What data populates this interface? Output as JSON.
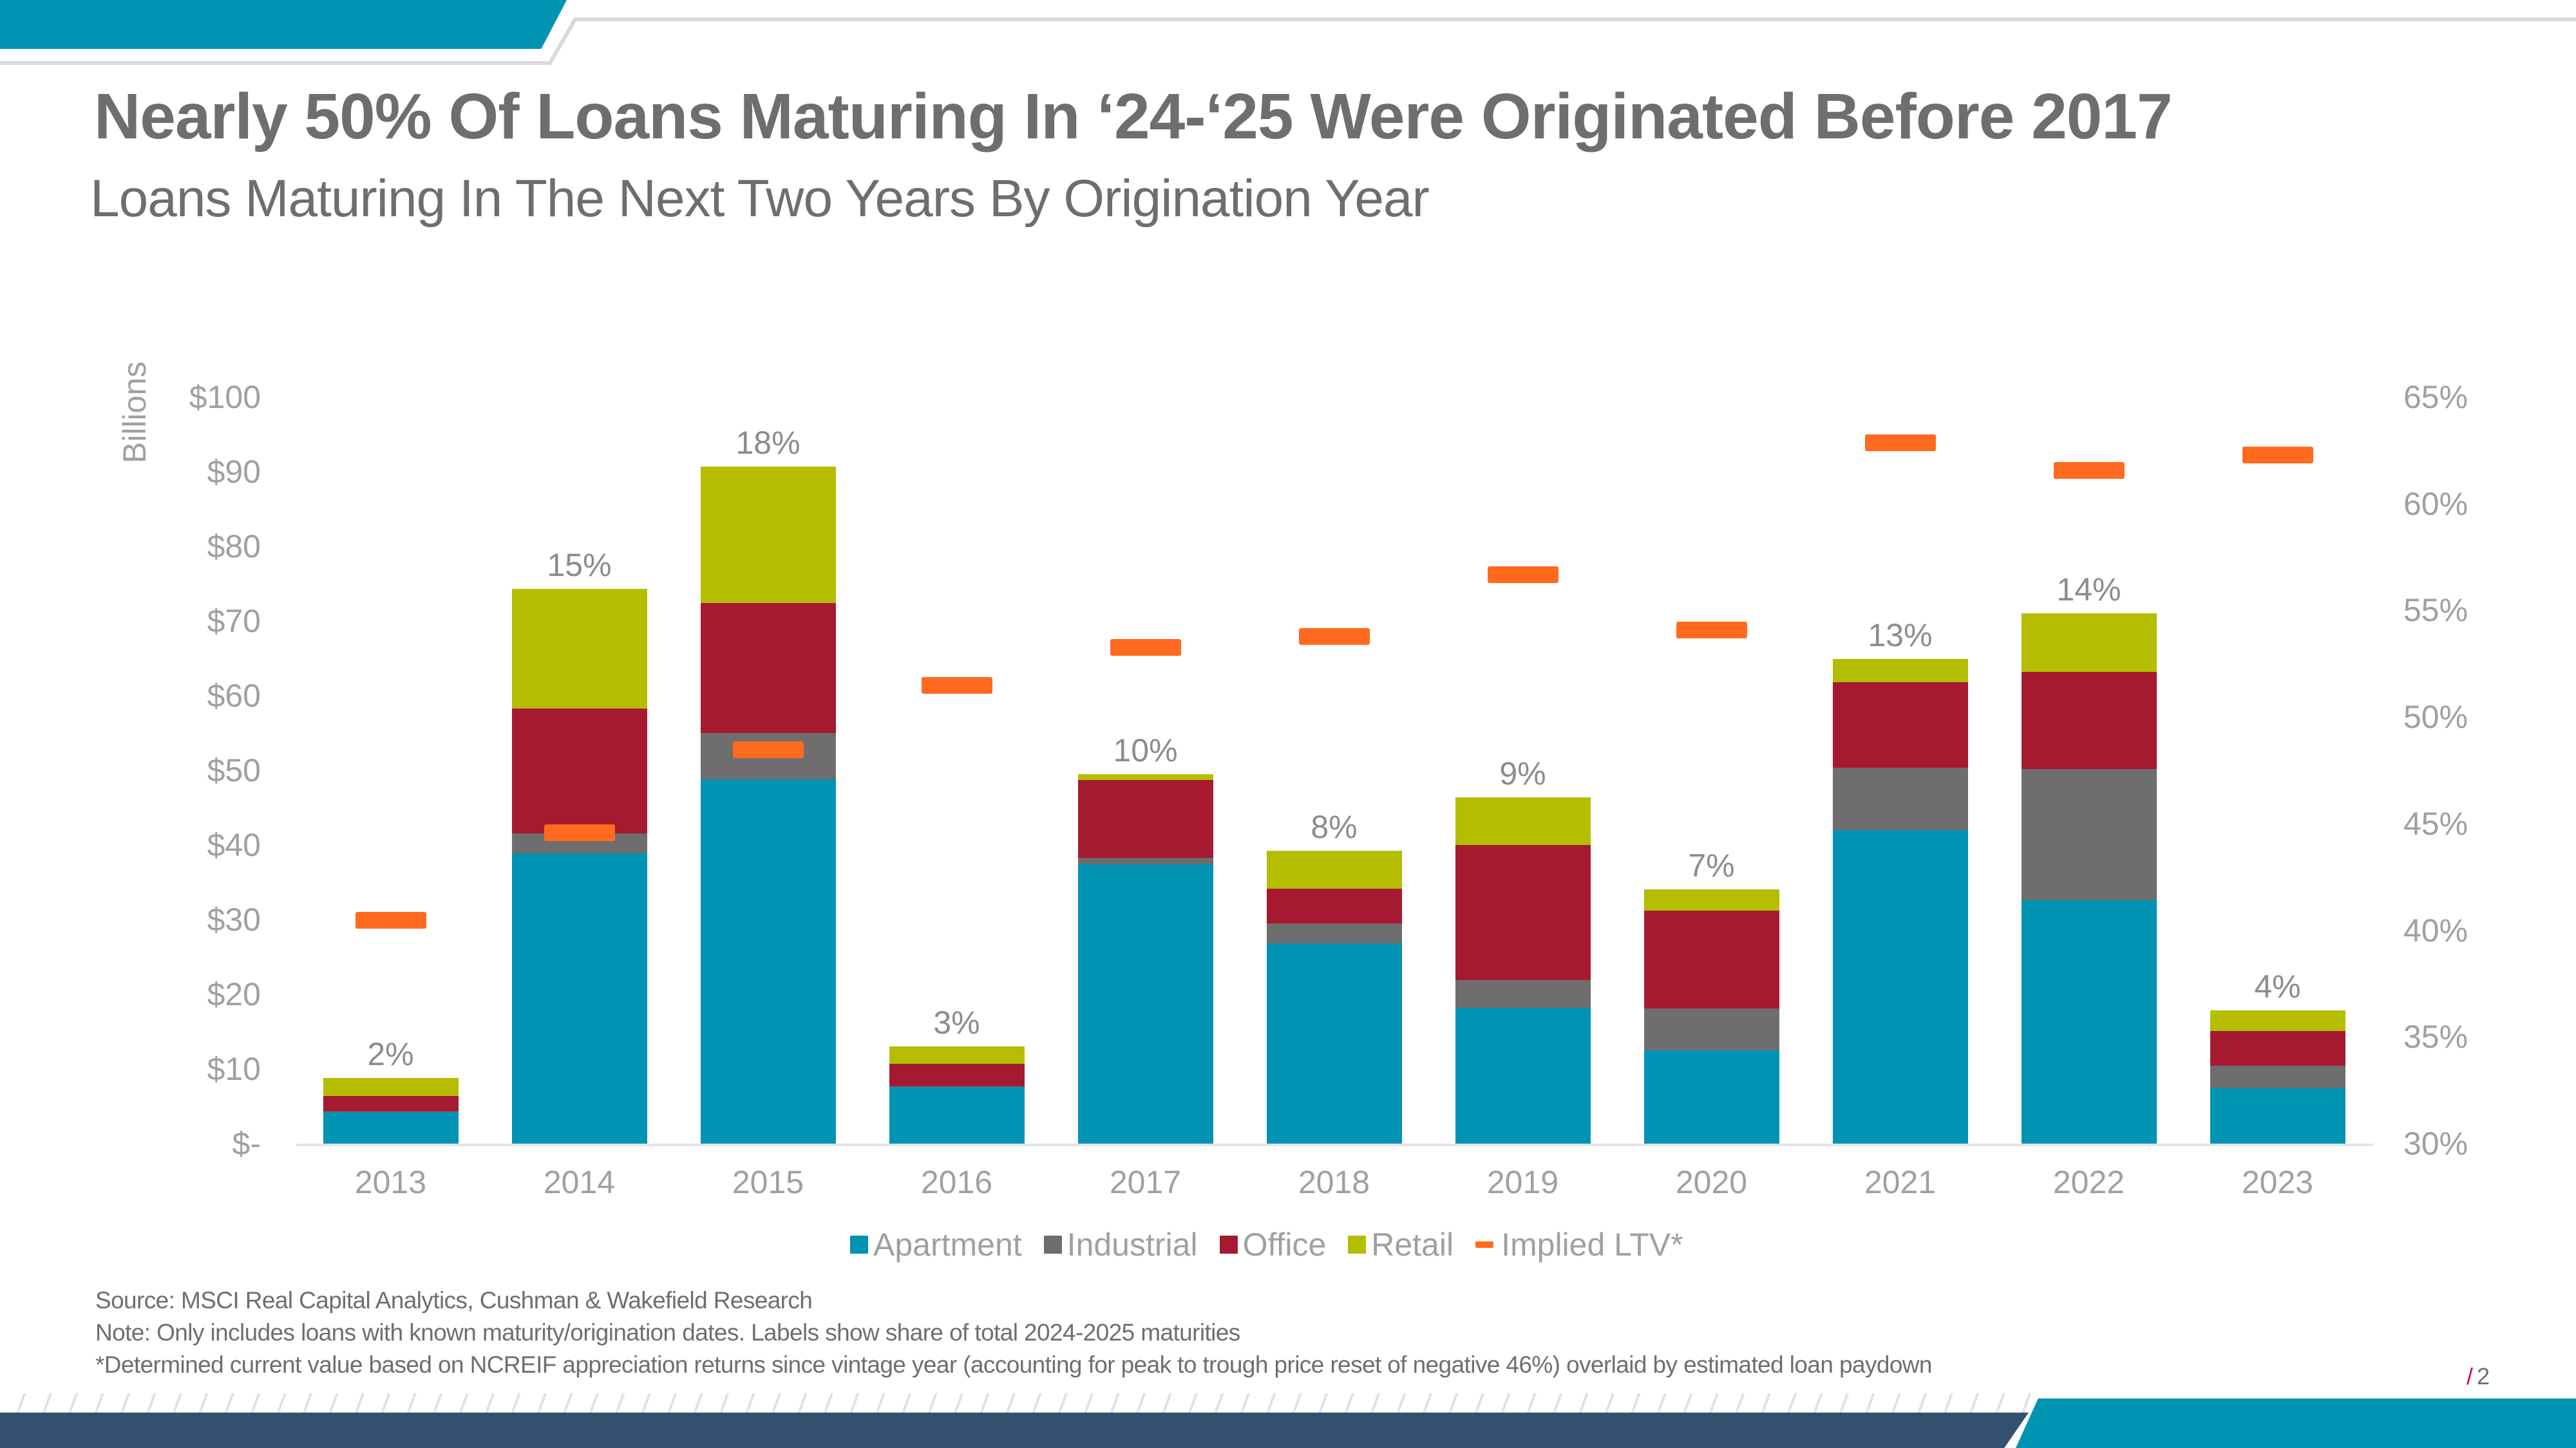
{
  "slide": {
    "title": "Nearly 50% Of Loans Maturing In ‘24-‘25 Were Originated Before 2017",
    "subtitle": "Loans Maturing In The Next Two Years By Origination Year",
    "page_number": "2",
    "page_slash": "/"
  },
  "colors": {
    "apartment": "#0093B4",
    "industrial": "#6D6E6D",
    "office": "#A51A30",
    "retail": "#B5BD00",
    "implied_ltv": "#FF6A1F",
    "header_teal": "#0093B4",
    "footer_navy": "#34506F"
  },
  "axes": {
    "y_left_label": "Billions",
    "y_left_ticks": [
      "$-",
      "$10",
      "$20",
      "$30",
      "$40",
      "$50",
      "$60",
      "$70",
      "$80",
      "$90",
      "$100"
    ],
    "y_right_ticks": [
      "30%",
      "35%",
      "40%",
      "45%",
      "50%",
      "55%",
      "60%",
      "65%"
    ]
  },
  "legend": {
    "apartment": "Apartment",
    "industrial": "Industrial",
    "office": "Office",
    "retail": "Retail",
    "implied_ltv": "Implied LTV*"
  },
  "notes": {
    "source": "Source: MSCI Real Capital Analytics, Cushman & Wakefield Research",
    "note": "Note: Only includes loans with known maturity/origination dates. Labels show share of total 2024-2025 maturities",
    "footnote": "*Determined current value based on NCREIF appreciation returns since vintage year (accounting for peak to trough price reset of negative 46%) overlaid by estimated loan paydown"
  },
  "chart_data": {
    "type": "bar",
    "stacked": true,
    "title": "Loans Maturing In The Next Two Years By Origination Year",
    "xlabel": "",
    "ylabel": "Billions",
    "ylim": [
      0,
      100
    ],
    "y2label": "Implied LTV*",
    "y2lim": [
      30,
      65
    ],
    "grid": false,
    "legend_position": "bottom",
    "categories": [
      "2013",
      "2014",
      "2015",
      "2016",
      "2017",
      "2018",
      "2019",
      "2020",
      "2021",
      "2022",
      "2023"
    ],
    "series": [
      {
        "name": "Apartment",
        "type": "bar",
        "axis": "left",
        "values": [
          4.3,
          39.0,
          48.9,
          7.7,
          37.5,
          26.9,
          18.3,
          12.6,
          42.1,
          32.7,
          7.5
        ]
      },
      {
        "name": "Industrial",
        "type": "bar",
        "axis": "left",
        "values": [
          0.1,
          2.6,
          6.2,
          0.1,
          0.9,
          2.7,
          3.7,
          5.6,
          8.3,
          17.6,
          3.0
        ]
      },
      {
        "name": "Office",
        "type": "bar",
        "axis": "left",
        "values": [
          2.1,
          16.8,
          17.4,
          3.0,
          10.4,
          4.6,
          18.1,
          13.1,
          11.5,
          13.0,
          4.7
        ]
      },
      {
        "name": "Retail",
        "type": "bar",
        "axis": "left",
        "values": [
          2.4,
          16.0,
          18.3,
          2.3,
          0.8,
          5.1,
          6.4,
          2.8,
          3.1,
          7.8,
          2.7
        ]
      },
      {
        "name": "Implied LTV*",
        "type": "marker",
        "axis": "right",
        "values": [
          40.5,
          44.6,
          48.5,
          51.5,
          53.3,
          53.8,
          56.7,
          54.1,
          62.9,
          61.6,
          62.3
        ]
      }
    ],
    "data_labels": [
      "2%",
      "15%",
      "18%",
      "3%",
      "10%",
      "8%",
      "9%",
      "7%",
      "13%",
      "14%",
      "4%"
    ]
  }
}
